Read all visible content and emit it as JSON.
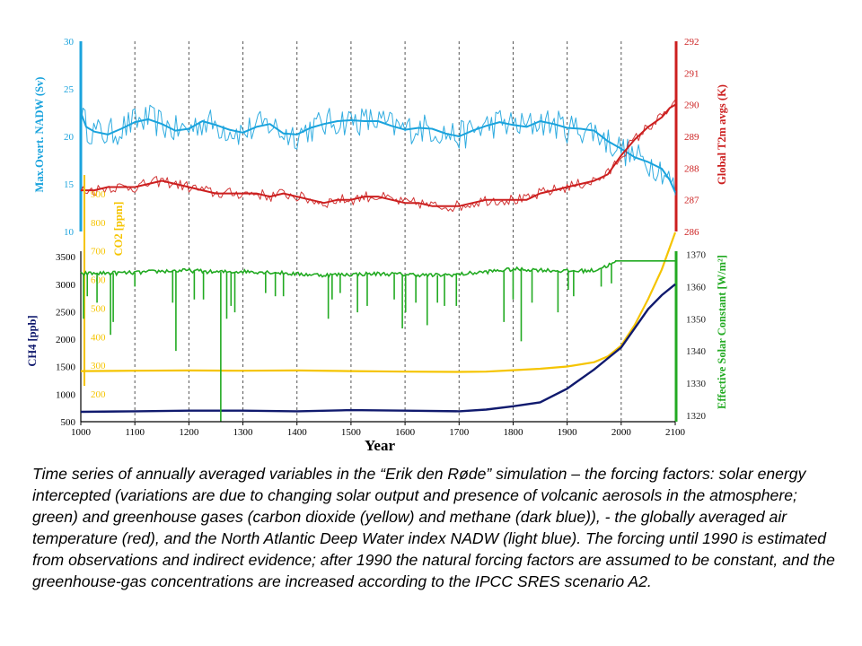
{
  "caption": "Time series of annually averaged variables in the “Erik den Røde” simulation – the forcing factors: solar energy intercepted (variations are due to changing solar output and presence of volcanic aerosols in the atmosphere; green) and greenhouse gases (carbon dioxide (yellow) and methane (dark blue)), - the globally averaged air temperature (red), and the North Atlantic Deep Water index NADW (light blue). The forcing until 1990 is estimated from observations and indirect evidence; after 1990 the natural forcing factors are assumed to be constant, and the greenhouse-gas concentrations are increased according to the IPCC SRES scenario A2.",
  "colors": {
    "nadw": "#1aa3dd",
    "temperature": "#cc1f1f",
    "co2": "#f5c400",
    "ch4": "#101a6e",
    "solar": "#22aa22",
    "axis": "#000000"
  },
  "chart_data": [
    {
      "type": "line",
      "panel": "top",
      "xlabel": "",
      "x_ticks": [
        1000,
        1100,
        1200,
        1300,
        1400,
        1500,
        1600,
        1700,
        1800,
        1900,
        2000,
        2100
      ],
      "xlim": [
        1000,
        2100
      ],
      "grid": "vertical dashed at each century",
      "axes": [
        {
          "side": "left",
          "label": "Max.Overt. NADW (Sv)",
          "ticks": [
            10,
            15,
            20,
            25,
            30
          ],
          "lim": [
            10,
            30
          ],
          "color": "#1aa3dd"
        },
        {
          "side": "right",
          "label": "Global T2m avgs (K)",
          "ticks": [
            286,
            287,
            288,
            289,
            290,
            291,
            292
          ],
          "lim": [
            286,
            292
          ],
          "color": "#cc1f1f"
        }
      ],
      "series": [
        {
          "id": "nadw",
          "axis": "left",
          "color": "#1aa3dd",
          "x": [
            1000,
            1010,
            1025,
            1050,
            1075,
            1100,
            1125,
            1150,
            1175,
            1200,
            1225,
            1250,
            1275,
            1300,
            1325,
            1350,
            1375,
            1400,
            1425,
            1450,
            1475,
            1500,
            1525,
            1550,
            1575,
            1600,
            1625,
            1650,
            1675,
            1700,
            1725,
            1750,
            1775,
            1800,
            1825,
            1850,
            1875,
            1900,
            1925,
            1950,
            1975,
            2000,
            2025,
            2050,
            2075,
            2090,
            2100
          ],
          "y": [
            22.5,
            21.0,
            20.5,
            20.2,
            20.8,
            21.5,
            21.8,
            21.3,
            20.6,
            20.8,
            21.6,
            21.2,
            20.7,
            20.4,
            21.0,
            21.3,
            20.3,
            20.2,
            20.9,
            21.3,
            21.6,
            21.7,
            21.6,
            21.6,
            21.1,
            20.7,
            20.9,
            20.8,
            20.3,
            20.0,
            20.6,
            21.1,
            21.5,
            21.2,
            21.0,
            21.6,
            21.3,
            20.9,
            20.8,
            20.6,
            19.5,
            18.7,
            17.8,
            17.3,
            16.6,
            15.4,
            14.1
          ]
        },
        {
          "id": "temperature",
          "axis": "right",
          "color": "#cc1f1f",
          "x": [
            1000,
            1025,
            1050,
            1075,
            1100,
            1125,
            1150,
            1175,
            1200,
            1225,
            1250,
            1275,
            1300,
            1325,
            1350,
            1375,
            1400,
            1425,
            1450,
            1475,
            1500,
            1525,
            1550,
            1575,
            1600,
            1625,
            1650,
            1675,
            1700,
            1725,
            1750,
            1775,
            1800,
            1825,
            1850,
            1875,
            1900,
            1925,
            1950,
            1975,
            2000,
            2025,
            2050,
            2075,
            2090,
            2100
          ],
          "y": [
            287.3,
            287.3,
            287.4,
            287.4,
            287.4,
            287.5,
            287.6,
            287.5,
            287.4,
            287.3,
            287.2,
            287.2,
            287.2,
            287.2,
            287.1,
            287.2,
            287.1,
            287.0,
            286.9,
            287.0,
            287.0,
            287.1,
            287.1,
            287.0,
            286.9,
            286.9,
            286.8,
            286.8,
            286.8,
            286.9,
            287.0,
            287.0,
            287.0,
            287.0,
            287.2,
            287.3,
            287.4,
            287.5,
            287.6,
            287.8,
            288.4,
            288.9,
            289.3,
            289.6,
            289.9,
            290.0
          ]
        }
      ]
    },
    {
      "type": "line",
      "panel": "bottom",
      "xlabel": "Year",
      "x_ticks": [
        1000,
        1100,
        1200,
        1300,
        1400,
        1500,
        1600,
        1700,
        1800,
        1900,
        2000,
        2100
      ],
      "xlim": [
        1000,
        2100
      ],
      "grid": "vertical dashed at each century",
      "axes": [
        {
          "side": "left-outer",
          "label": "CH4 [ppb]",
          "ticks": [
            500,
            1000,
            1500,
            2000,
            2500,
            3000,
            3500
          ],
          "lim": [
            500,
            3600
          ],
          "color": "#101a6e"
        },
        {
          "side": "left-inner",
          "label": "CO2 [ppm]",
          "ticks": [
            200,
            300,
            400,
            500,
            600,
            700,
            800,
            900
          ],
          "lim": [
            150,
            950
          ],
          "color": "#f5c400"
        },
        {
          "side": "right",
          "label": "Effective Solar Constant [W/m²]",
          "ticks": [
            1320,
            1330,
            1340,
            1350,
            1360,
            1370
          ],
          "lim": [
            1318,
            1371
          ],
          "color": "#22aa22"
        }
      ],
      "series": [
        {
          "id": "co2",
          "axis": "left-inner",
          "color": "#f5c400",
          "x": [
            1000,
            1100,
            1200,
            1300,
            1400,
            1500,
            1600,
            1700,
            1750,
            1800,
            1850,
            1900,
            1950,
            1975,
            2000,
            2025,
            2050,
            2075,
            2100
          ],
          "y": [
            280,
            281,
            282,
            281,
            282,
            280,
            278,
            277,
            278,
            283,
            288,
            296,
            311,
            331,
            369,
            441,
            532,
            635,
            765
          ]
        },
        {
          "id": "ch4",
          "axis": "left-outer",
          "color": "#101a6e",
          "x": [
            1000,
            1100,
            1200,
            1300,
            1400,
            1500,
            1600,
            1700,
            1750,
            1800,
            1850,
            1900,
            1950,
            1975,
            2000,
            2025,
            2050,
            2075,
            2100
          ],
          "y": [
            680,
            690,
            700,
            700,
            690,
            710,
            700,
            690,
            720,
            780,
            850,
            1100,
            1450,
            1650,
            1850,
            2200,
            2550,
            2800,
            3000
          ]
        },
        {
          "id": "solar",
          "axis": "right",
          "color": "#22aa22",
          "x": [
            1000,
            1050,
            1100,
            1150,
            1200,
            1250,
            1300,
            1350,
            1400,
            1450,
            1500,
            1550,
            1600,
            1650,
            1700,
            1750,
            1800,
            1850,
            1900,
            1950,
            1990,
            2000,
            2100
          ],
          "y": [
            1364.0,
            1364.2,
            1364.3,
            1364.8,
            1365.0,
            1364.5,
            1364.7,
            1364.5,
            1363.9,
            1363.6,
            1363.8,
            1364.0,
            1363.8,
            1363.5,
            1363.8,
            1364.6,
            1365.4,
            1365.2,
            1364.8,
            1365.0,
            1367.5,
            1368.0,
            1368.0
          ],
          "volcanic_dips": [
            {
              "x": 1005,
              "y": 1350
            },
            {
              "x": 1012,
              "y": 1357
            },
            {
              "x": 1030,
              "y": 1355
            },
            {
              "x": 1055,
              "y": 1345
            },
            {
              "x": 1060,
              "y": 1349
            },
            {
              "x": 1100,
              "y": 1360
            },
            {
              "x": 1170,
              "y": 1355
            },
            {
              "x": 1176,
              "y": 1340
            },
            {
              "x": 1210,
              "y": 1356
            },
            {
              "x": 1227,
              "y": 1356
            },
            {
              "x": 1259,
              "y": 1318
            },
            {
              "x": 1270,
              "y": 1350
            },
            {
              "x": 1278,
              "y": 1354
            },
            {
              "x": 1285,
              "y": 1352
            },
            {
              "x": 1342,
              "y": 1358
            },
            {
              "x": 1360,
              "y": 1357
            },
            {
              "x": 1375,
              "y": 1357
            },
            {
              "x": 1458,
              "y": 1350
            },
            {
              "x": 1465,
              "y": 1356
            },
            {
              "x": 1480,
              "y": 1358
            },
            {
              "x": 1512,
              "y": 1352
            },
            {
              "x": 1530,
              "y": 1354
            },
            {
              "x": 1580,
              "y": 1356
            },
            {
              "x": 1595,
              "y": 1347
            },
            {
              "x": 1601,
              "y": 1352
            },
            {
              "x": 1620,
              "y": 1355
            },
            {
              "x": 1641,
              "y": 1348
            },
            {
              "x": 1660,
              "y": 1355
            },
            {
              "x": 1673,
              "y": 1354
            },
            {
              "x": 1695,
              "y": 1354
            },
            {
              "x": 1783,
              "y": 1349
            },
            {
              "x": 1800,
              "y": 1356
            },
            {
              "x": 1815,
              "y": 1343
            },
            {
              "x": 1835,
              "y": 1355
            },
            {
              "x": 1883,
              "y": 1352
            },
            {
              "x": 1902,
              "y": 1359
            },
            {
              "x": 1912,
              "y": 1357
            },
            {
              "x": 1963,
              "y": 1360
            },
            {
              "x": 1982,
              "y": 1361
            }
          ]
        }
      ]
    }
  ]
}
